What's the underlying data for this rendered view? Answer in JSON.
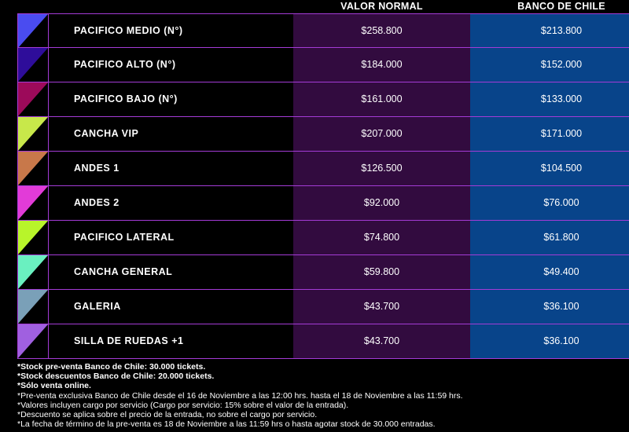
{
  "header": {
    "valor_normal": "VALOR NORMAL",
    "banco_de_chile": "BANCO DE CHILE"
  },
  "rows": [
    {
      "name": "PACIFICO MEDIO (N°)",
      "valor_normal": "$258.800",
      "banco": "$213.800",
      "color": "#4a4cf0"
    },
    {
      "name": "PACIFICO ALTO (N°)",
      "valor_normal": "$184.000",
      "banco": "$152.000",
      "color": "#2e0d9a"
    },
    {
      "name": "PACIFICO BAJO (N°)",
      "valor_normal": "$161.000",
      "banco": "$133.000",
      "color": "#9c0a5a"
    },
    {
      "name": "CANCHA VIP",
      "valor_normal": "$207.000",
      "banco": "$171.000",
      "color": "#c8e84a"
    },
    {
      "name": "ANDES 1",
      "valor_normal": "$126.500",
      "banco": "$104.500",
      "color": "#c8784a"
    },
    {
      "name": "ANDES 2",
      "valor_normal": "$92.000",
      "banco": "$76.000",
      "color": "#e23bd8"
    },
    {
      "name": "PACIFICO LATERAL",
      "valor_normal": "$74.800",
      "banco": "$61.800",
      "color": "#b8f52a"
    },
    {
      "name": "CANCHA GENERAL",
      "valor_normal": "$59.800",
      "banco": "$49.400",
      "color": "#6af0c0"
    },
    {
      "name": "GALERIA",
      "valor_normal": "$43.700",
      "banco": "$36.100",
      "color": "#7aa0b8"
    },
    {
      "name": "SILLA DE RUEDAS +1",
      "valor_normal": "$43.700",
      "banco": "$36.100",
      "color": "#a060e0"
    }
  ],
  "notes": [
    {
      "text": "*Stock pre-venta Banco de Chile: 30.000 tickets.",
      "bold": true
    },
    {
      "text": "*Stock descuentos Banco de Chile: 20.000 tickets.",
      "bold": true
    },
    {
      "text": "*Sólo venta online.",
      "bold": true
    },
    {
      "text": "*Pre-venta exclusiva Banco de Chile desde el 16 de Noviembre a las 12:00 hrs. hasta el 18 de Noviembre a las 11:59 hrs.",
      "bold": false
    },
    {
      "text": "*Valores incluyen cargo por servicio (Cargo por servicio: 15% sobre el valor de la entrada).",
      "bold": false
    },
    {
      "text": "*Descuento se aplica sobre el precio de la entrada, no sobre el cargo por servicio.",
      "bold": false
    },
    {
      "text": "*La fecha de término de la pre-venta es 18 de Noviembre a las 11:59 hrs o hasta agotar stock de 30.000 entradas.",
      "bold": false
    }
  ],
  "colors": {
    "border": "#a43bd6",
    "normal_col_bg": "#320b3f",
    "banco_col_bg": "#08448a",
    "background": "#000000"
  }
}
